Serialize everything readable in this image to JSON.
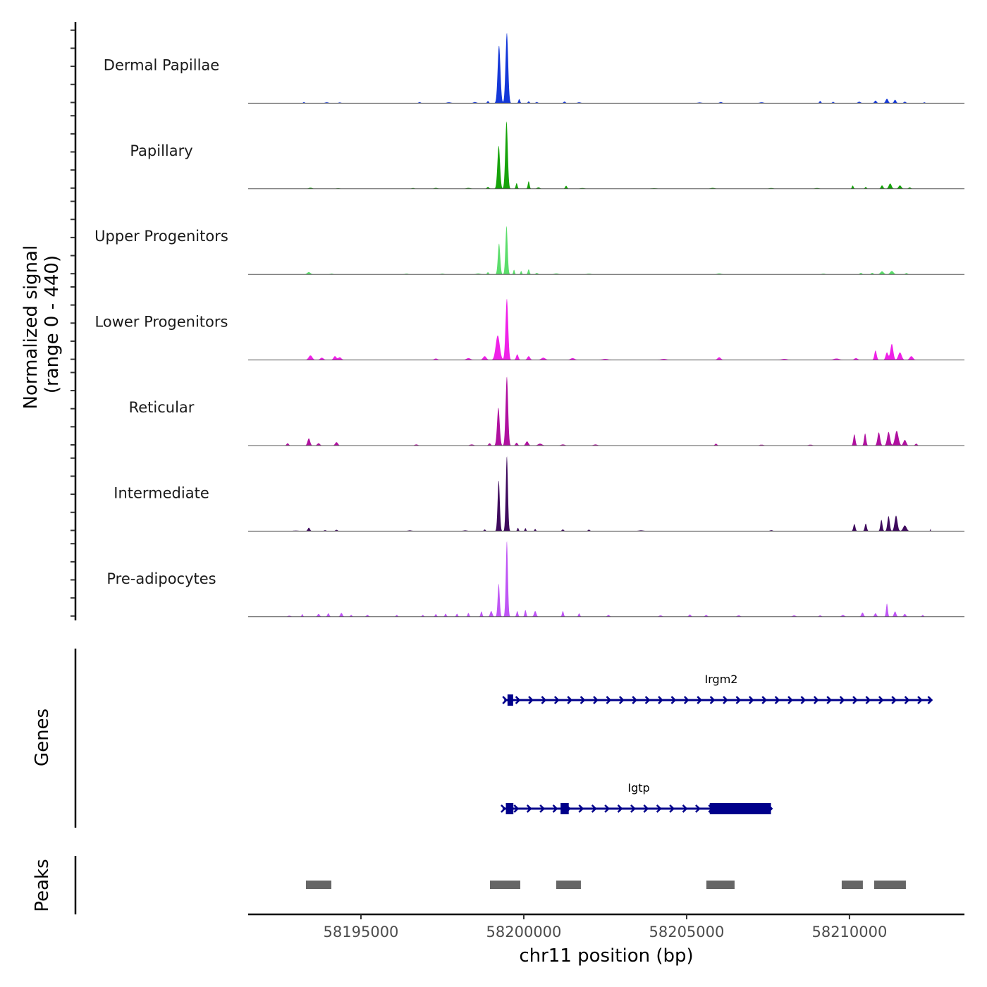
{
  "chart_data": {
    "type": "area",
    "title": "",
    "chromosome": "chr11",
    "xlabel": "chr11 position (bp)",
    "ylabel": "Normalized signal\n(range 0 - 440)",
    "ylabel_lines": [
      "Normalized signal",
      "(range 0 - 440)"
    ],
    "ylim": [
      0,
      440
    ],
    "xlim": [
      58191537,
      58213530
    ],
    "x_ticks": [
      58195000,
      58200000,
      58205000,
      58210000
    ],
    "x_tick_labels": [
      "58195000",
      "58200000",
      "58205000",
      "58210000"
    ],
    "grid": false,
    "legend": "none",
    "tracks": [
      {
        "name": "Dermal Papillae",
        "color": "#1438d9",
        "signal_start": 58192600,
        "signal_end": 58212500,
        "peaks": [
          [
            58193250,
            6,
            60
          ],
          [
            58193950,
            5,
            120
          ],
          [
            58194350,
            4,
            100
          ],
          [
            58196800,
            6,
            80
          ],
          [
            58197700,
            5,
            150
          ],
          [
            58198500,
            6,
            120
          ],
          [
            58198900,
            12,
            60
          ],
          [
            58199240,
            306,
            95
          ],
          [
            58199480,
            373,
            90
          ],
          [
            58199860,
            22,
            60
          ],
          [
            58200150,
            10,
            60
          ],
          [
            58200400,
            6,
            80
          ],
          [
            58201250,
            9,
            70
          ],
          [
            58201700,
            5,
            120
          ],
          [
            58205400,
            4,
            150
          ],
          [
            58206050,
            6,
            100
          ],
          [
            58207300,
            5,
            140
          ],
          [
            58209100,
            12,
            60
          ],
          [
            58209500,
            7,
            70
          ],
          [
            58210300,
            8,
            100
          ],
          [
            58210800,
            14,
            80
          ],
          [
            58211150,
            24,
            90
          ],
          [
            58211400,
            18,
            80
          ],
          [
            58211700,
            8,
            80
          ],
          [
            58212300,
            5,
            60
          ]
        ]
      },
      {
        "name": "Papillary",
        "color": "#16a30a",
        "signal_start": 58192600,
        "signal_end": 58212500,
        "peaks": [
          [
            58193450,
            6,
            120
          ],
          [
            58194300,
            3,
            120
          ],
          [
            58196600,
            4,
            100
          ],
          [
            58197300,
            5,
            120
          ],
          [
            58198300,
            5,
            150
          ],
          [
            58198900,
            10,
            80
          ],
          [
            58199230,
            228,
            90
          ],
          [
            58199470,
            358,
            85
          ],
          [
            58199780,
            30,
            60
          ],
          [
            58200150,
            40,
            60
          ],
          [
            58200450,
            8,
            100
          ],
          [
            58201300,
            16,
            70
          ],
          [
            58201800,
            4,
            150
          ],
          [
            58204000,
            3,
            200
          ],
          [
            58205800,
            5,
            150
          ],
          [
            58207600,
            4,
            150
          ],
          [
            58209000,
            4,
            150
          ],
          [
            58210100,
            17,
            60
          ],
          [
            58210500,
            10,
            60
          ],
          [
            58211000,
            18,
            80
          ],
          [
            58211250,
            28,
            100
          ],
          [
            58211550,
            18,
            100
          ],
          [
            58211850,
            8,
            80
          ]
        ]
      },
      {
        "name": "Upper Progenitors",
        "color": "#5bdd6b",
        "signal_start": 58192600,
        "signal_end": 58212500,
        "peaks": [
          [
            58193400,
            12,
            120
          ],
          [
            58194100,
            4,
            100
          ],
          [
            58196400,
            4,
            120
          ],
          [
            58197500,
            4,
            120
          ],
          [
            58198600,
            5,
            150
          ],
          [
            58198900,
            12,
            60
          ],
          [
            58199240,
            164,
            80
          ],
          [
            58199470,
            257,
            75
          ],
          [
            58199700,
            25,
            50
          ],
          [
            58199920,
            18,
            50
          ],
          [
            58200150,
            27,
            60
          ],
          [
            58200400,
            8,
            80
          ],
          [
            58201000,
            5,
            150
          ],
          [
            58202000,
            4,
            150
          ],
          [
            58206000,
            5,
            150
          ],
          [
            58209200,
            4,
            120
          ],
          [
            58210350,
            8,
            80
          ],
          [
            58210700,
            8,
            80
          ],
          [
            58211000,
            16,
            120
          ],
          [
            58211300,
            18,
            120
          ],
          [
            58211750,
            7,
            80
          ]
        ]
      },
      {
        "name": "Lower Progenitors",
        "color": "#f021e8",
        "signal_start": 58192600,
        "signal_end": 58212500,
        "peaks": [
          [
            58193450,
            24,
            130
          ],
          [
            58193800,
            12,
            120
          ],
          [
            58194200,
            20,
            100
          ],
          [
            58194350,
            14,
            120
          ],
          [
            58197300,
            8,
            120
          ],
          [
            58198300,
            10,
            150
          ],
          [
            58198800,
            20,
            120
          ],
          [
            58199200,
            130,
            140
          ],
          [
            58199480,
            325,
            90
          ],
          [
            58199800,
            30,
            80
          ],
          [
            58200150,
            20,
            100
          ],
          [
            58200600,
            12,
            150
          ],
          [
            58201500,
            10,
            150
          ],
          [
            58202500,
            6,
            200
          ],
          [
            58204300,
            6,
            200
          ],
          [
            58206000,
            14,
            120
          ],
          [
            58208000,
            6,
            200
          ],
          [
            58209600,
            8,
            200
          ],
          [
            58210200,
            10,
            120
          ],
          [
            58210800,
            50,
            80
          ],
          [
            58211150,
            40,
            90
          ],
          [
            58211300,
            85,
            100
          ],
          [
            58211550,
            40,
            120
          ],
          [
            58211900,
            20,
            120
          ]
        ]
      },
      {
        "name": "Reticular",
        "color": "#b0109f",
        "signal_start": 58192600,
        "signal_end": 58212500,
        "peaks": [
          [
            58192750,
            12,
            80
          ],
          [
            58193400,
            38,
            90
          ],
          [
            58193700,
            12,
            100
          ],
          [
            58194250,
            18,
            100
          ],
          [
            58196700,
            6,
            120
          ],
          [
            58198400,
            6,
            150
          ],
          [
            58198950,
            12,
            80
          ],
          [
            58199220,
            201,
            90
          ],
          [
            58199480,
            366,
            85
          ],
          [
            58199780,
            15,
            80
          ],
          [
            58200100,
            22,
            100
          ],
          [
            58200500,
            10,
            150
          ],
          [
            58201200,
            6,
            150
          ],
          [
            58202200,
            6,
            150
          ],
          [
            58205900,
            10,
            80
          ],
          [
            58207300,
            5,
            150
          ],
          [
            58208800,
            5,
            150
          ],
          [
            58210150,
            60,
            70
          ],
          [
            58210480,
            64,
            70
          ],
          [
            58210900,
            70,
            90
          ],
          [
            58211200,
            72,
            100
          ],
          [
            58211450,
            78,
            120
          ],
          [
            58211700,
            30,
            100
          ],
          [
            58212050,
            10,
            80
          ]
        ]
      },
      {
        "name": "Intermediate",
        "color": "#3e0a5d",
        "signal_start": 58192600,
        "signal_end": 58212500,
        "peaks": [
          [
            58193000,
            3,
            200
          ],
          [
            58193400,
            18,
            80
          ],
          [
            58193900,
            5,
            80
          ],
          [
            58194250,
            7,
            80
          ],
          [
            58196500,
            4,
            150
          ],
          [
            58198200,
            4,
            150
          ],
          [
            58198800,
            9,
            60
          ],
          [
            58199230,
            269,
            75
          ],
          [
            58199480,
            399,
            72
          ],
          [
            58199820,
            18,
            50
          ],
          [
            58200050,
            16,
            50
          ],
          [
            58200350,
            12,
            50
          ],
          [
            58201200,
            9,
            70
          ],
          [
            58202000,
            8,
            70
          ],
          [
            58203600,
            4,
            200
          ],
          [
            58207600,
            5,
            100
          ],
          [
            58210150,
            38,
            70
          ],
          [
            58210500,
            40,
            70
          ],
          [
            58210980,
            60,
            70
          ],
          [
            58211200,
            80,
            80
          ],
          [
            58211430,
            82,
            100
          ],
          [
            58211700,
            30,
            120
          ],
          [
            58212500,
            15,
            40
          ]
        ]
      },
      {
        "name": "Pre-adipocytes",
        "color": "#bf55f5",
        "signal_start": 58192600,
        "signal_end": 58212500,
        "peaks": [
          [
            58192800,
            6,
            100
          ],
          [
            58193200,
            14,
            50
          ],
          [
            58193700,
            15,
            80
          ],
          [
            58194000,
            18,
            70
          ],
          [
            58194400,
            20,
            80
          ],
          [
            58194700,
            10,
            60
          ],
          [
            58195200,
            10,
            80
          ],
          [
            58196100,
            10,
            60
          ],
          [
            58196900,
            10,
            60
          ],
          [
            58197300,
            14,
            60
          ],
          [
            58197600,
            16,
            60
          ],
          [
            58197950,
            16,
            60
          ],
          [
            58198300,
            20,
            60
          ],
          [
            58198700,
            28,
            60
          ],
          [
            58199000,
            30,
            80
          ],
          [
            58199230,
            175,
            70
          ],
          [
            58199480,
            403,
            70
          ],
          [
            58199800,
            30,
            60
          ],
          [
            58200050,
            36,
            60
          ],
          [
            58200350,
            30,
            80
          ],
          [
            58201200,
            30,
            60
          ],
          [
            58201700,
            18,
            60
          ],
          [
            58202600,
            10,
            80
          ],
          [
            58204200,
            8,
            100
          ],
          [
            58205100,
            12,
            80
          ],
          [
            58205600,
            10,
            80
          ],
          [
            58206600,
            8,
            100
          ],
          [
            58208300,
            8,
            100
          ],
          [
            58209100,
            8,
            80
          ],
          [
            58209800,
            10,
            100
          ],
          [
            58210400,
            22,
            80
          ],
          [
            58210800,
            18,
            80
          ],
          [
            58211150,
            70,
            60
          ],
          [
            58211400,
            28,
            80
          ],
          [
            58211700,
            15,
            80
          ],
          [
            58212250,
            10,
            60
          ]
        ]
      }
    ],
    "genes_track": {
      "label": "Genes",
      "color": "#00008b",
      "genes": [
        {
          "name": "Irgm2",
          "strand": "+",
          "start": 58199400,
          "end": 58212500,
          "exons": [
            [
              58199500,
              58199650
            ]
          ],
          "row": 1
        },
        {
          "name": "Igtp",
          "strand": "+",
          "start": 58199350,
          "end": 58207590,
          "exons": [
            [
              58199450,
              58199680
            ],
            [
              58201130,
              58201380
            ],
            [
              58205710,
              58207590
            ]
          ],
          "row": 2
        }
      ]
    },
    "peaks_track": {
      "label": "Peaks",
      "color": "#666666",
      "regions": [
        [
          58193312,
          58194091
        ],
        [
          58198961,
          58199892
        ],
        [
          58200995,
          58201753
        ],
        [
          58205606,
          58206472
        ],
        [
          58209762,
          58210411
        ],
        [
          58210758,
          58211732
        ]
      ]
    }
  }
}
